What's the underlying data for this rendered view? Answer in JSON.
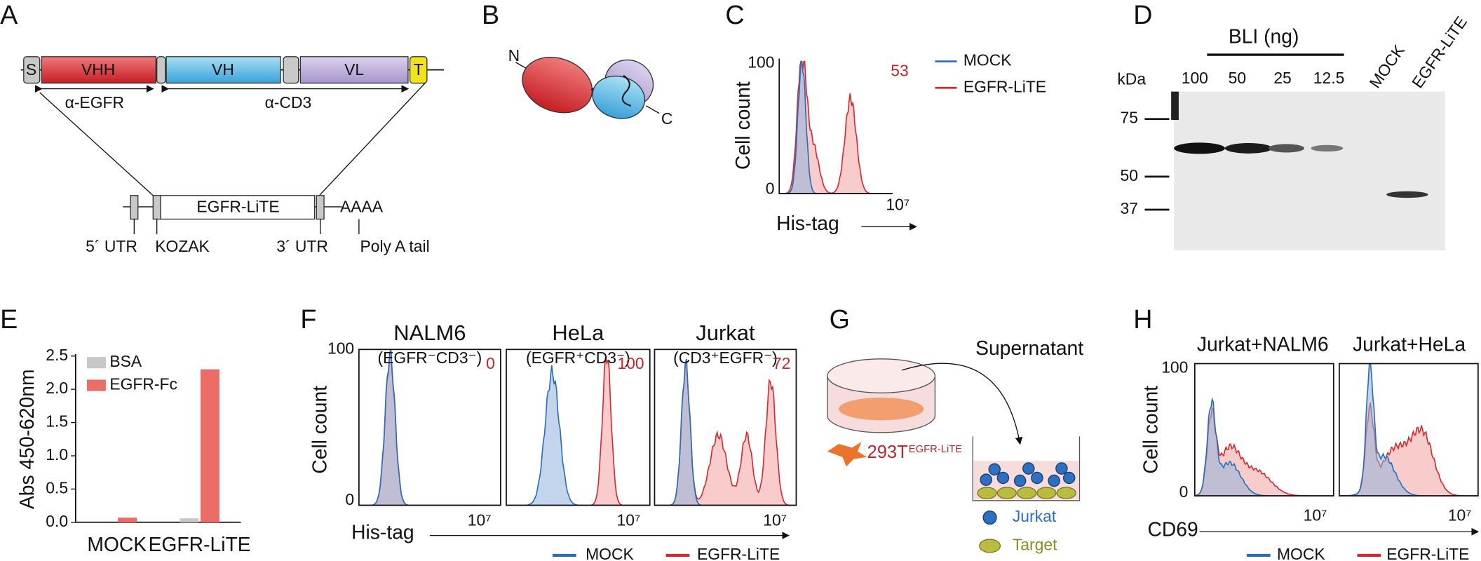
{
  "panel_labels": [
    "A",
    "B",
    "C",
    "D",
    "E",
    "F",
    "G",
    "H"
  ],
  "panel_a": {
    "segments": [
      "S",
      "VHH",
      "VH",
      "VL",
      "T"
    ],
    "brackets": [
      "α-EGFR",
      "α-CD3"
    ],
    "construct": "EGFR-LiTE",
    "tail": "AAAA",
    "elements": [
      "5´ UTR",
      "KOZAK",
      "3´ UTR",
      "Poly A tail"
    ]
  },
  "panel_b": {
    "n_term": "N",
    "c_term": "C"
  },
  "panel_c": {
    "y_label": "Cell count",
    "y_top": "100",
    "y_bottom": "0",
    "x_label": "His-tag",
    "x_max": "10⁷",
    "percent": "53",
    "legend": [
      "MOCK",
      "EGFR-LiTE"
    ]
  },
  "panel_d": {
    "header": "BLI (ng)",
    "unit": "kDa",
    "lanes": [
      "100",
      "50",
      "25",
      "12.5",
      "MOCK",
      "EGFR-LiTE"
    ],
    "markers": [
      "75",
      "50",
      "37"
    ]
  },
  "panel_e": {
    "type": "bar",
    "y_label": "Abs 450-620nm",
    "categories": [
      "MOCK",
      "EGFR-LiTE"
    ],
    "series": [
      {
        "name": "BSA",
        "color": "#c8c8c8",
        "values": [
          0.0,
          0.06
        ]
      },
      {
        "name": "EGFR-Fc",
        "color": "#ec6c67",
        "values": [
          0.07,
          2.3
        ]
      }
    ],
    "ylim": [
      0,
      2.5
    ],
    "yticks": [
      {
        "value": 0,
        "label": "0.0"
      },
      {
        "value": 0.5,
        "label": "0.5"
      },
      {
        "value": 1,
        "label": "1.0"
      },
      {
        "value": 1.5,
        "label": "1.5"
      },
      {
        "value": 2,
        "label": "2.0"
      },
      {
        "value": 2.5,
        "label": "2.5"
      }
    ]
  },
  "panel_f": {
    "panels": [
      {
        "title": "NALM6",
        "subtitle": "(EGFR⁻CD3⁻)",
        "percent": "0"
      },
      {
        "title": "HeLa",
        "subtitle": "(EGFR⁺CD3⁻)",
        "percent": "100"
      },
      {
        "title": "Jurkat",
        "subtitle": "(CD3⁺EGFR⁻)",
        "percent": "72"
      }
    ],
    "y_label": "Cell count",
    "y_top": "100",
    "y_bottom": "0",
    "x_label": "His-tag",
    "x_max": "10⁷",
    "legend": [
      "MOCK",
      "EGFR-LiTE"
    ]
  },
  "panel_g": {
    "supernatant": "Supernatant",
    "producer": "293T",
    "producer_tag": "EGFR-LiTE",
    "legend": [
      "Jurkat",
      "Target"
    ]
  },
  "panel_h": {
    "panels": [
      "Jurkat+NALM6",
      "Jurkat+HeLa"
    ],
    "y_label": "Cell count",
    "y_top": "100",
    "y_bottom": "0",
    "x_label": "CD69",
    "x_max": "10⁷",
    "legend": [
      "MOCK",
      "EGFR-LiTE"
    ]
  }
}
